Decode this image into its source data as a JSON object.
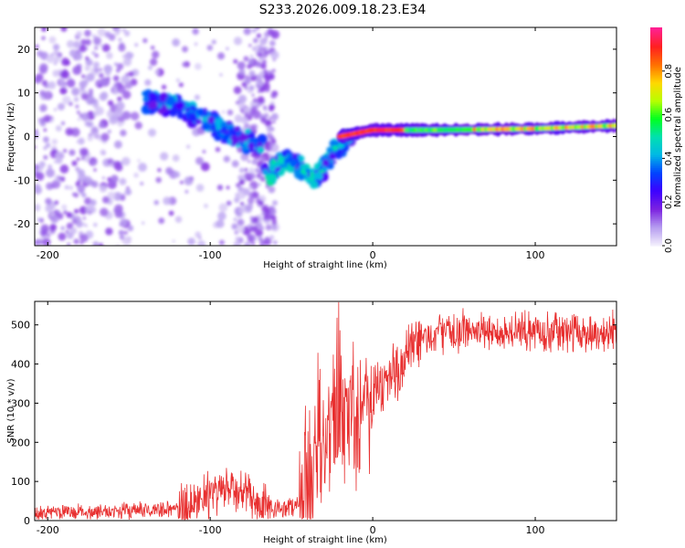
{
  "title": "S233.2026.009.18.23.E34",
  "chart_data": [
    {
      "type": "heatmap",
      "name": "spectrogram",
      "xlabel": "Height of straight line (km)",
      "ylabel": "Frequency (Hz)",
      "xlim": [
        -208,
        150
      ],
      "ylim": [
        -25,
        25
      ],
      "xticks": [
        -200,
        -100,
        0,
        100
      ],
      "xtick_labels": [
        "-200",
        "-100",
        "0",
        "100"
      ],
      "yticks": [
        20,
        10,
        0,
        -10,
        -20
      ],
      "ytick_labels": [
        "20",
        "10",
        "0",
        "-10",
        "-20"
      ],
      "colorbar": {
        "label": "Normalized spectral amplitude",
        "range": [
          0.0,
          1.0
        ],
        "ticks": [
          0.0,
          0.2,
          0.4,
          0.6,
          0.8
        ],
        "tick_labels": [
          "0.0",
          "0.2",
          "0.4",
          "0.6",
          "0.8"
        ],
        "colormap": [
          "#f2eefc",
          "#b59bf0",
          "#7b22e0",
          "#3d00ff",
          "#0044ff",
          "#00b8e6",
          "#00e0b0",
          "#00ff20",
          "#b8ff00",
          "#ffd800",
          "#ff7000",
          "#ff2020",
          "#ff2090"
        ]
      },
      "features": [
        {
          "name": "noise-cloud",
          "x_range": [
            -208,
            -60
          ],
          "frequency_range": [
            -25,
            25
          ],
          "amplitude": 0.1
        },
        {
          "name": "descending-band-upper",
          "points": [
            [
              -140,
              8
            ],
            [
              -120,
              7
            ],
            [
              -100,
              3
            ],
            [
              -85,
              0
            ],
            [
              -70,
              -2
            ]
          ],
          "amplitude": 0.3
        },
        {
          "name": "descending-band-lower",
          "points": [
            [
              -65,
              -9
            ],
            [
              -55,
              -5
            ],
            [
              -45,
              -7
            ],
            [
              -35,
              -10
            ],
            [
              -25,
              -4
            ],
            [
              -15,
              0
            ]
          ],
          "amplitude": 0.35
        },
        {
          "name": "steady-line",
          "points": [
            [
              -20,
              0
            ],
            [
              0,
              1.5
            ],
            [
              40,
              1.5
            ],
            [
              100,
              1.8
            ],
            [
              150,
              2.5
            ]
          ],
          "amplitude": 0.9
        }
      ]
    },
    {
      "type": "line",
      "name": "snr",
      "xlabel": "Height of straight line (km)",
      "ylabel": "SNR (10 * v/v)",
      "xlim": [
        -208,
        150
      ],
      "ylim": [
        0,
        560
      ],
      "xticks": [
        -200,
        -100,
        0,
        100
      ],
      "xtick_labels": [
        "-200",
        "-100",
        "0",
        "100"
      ],
      "yticks": [
        0,
        100,
        200,
        300,
        400,
        500
      ],
      "ytick_labels": [
        "0",
        "100",
        "200",
        "300",
        "400",
        "500"
      ],
      "color": "#e83030",
      "series": [
        {
          "name": "SNR",
          "x": [
            -208,
            -180,
            -150,
            -120,
            -110,
            -100,
            -90,
            -80,
            -70,
            -60,
            -50,
            -40,
            -35,
            -30,
            -25,
            -20,
            -15,
            -10,
            -5,
            0,
            10,
            20,
            30,
            40,
            60,
            80,
            100,
            120,
            150
          ],
          "y": [
            20,
            22,
            25,
            30,
            50,
            65,
            80,
            75,
            40,
            30,
            35,
            70,
            130,
            180,
            230,
            270,
            280,
            300,
            310,
            330,
            360,
            410,
            460,
            480,
            485,
            480,
            485,
            480,
            480
          ]
        }
      ]
    }
  ]
}
